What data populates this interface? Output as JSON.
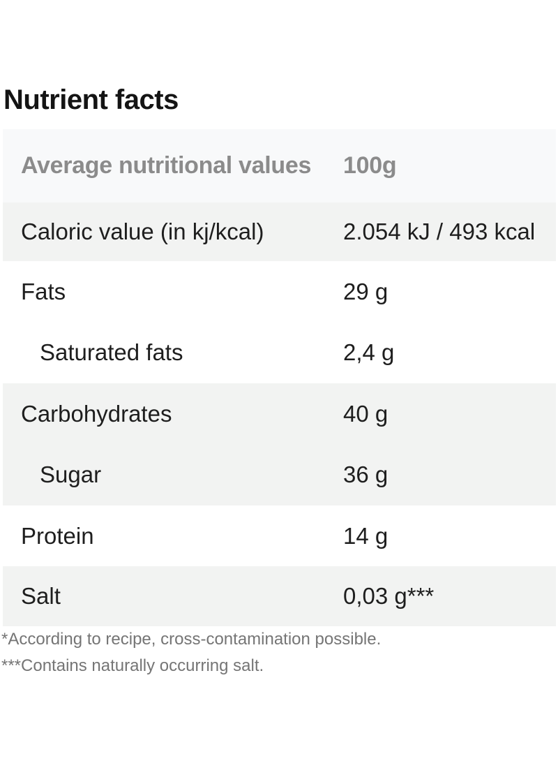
{
  "title": "Nutrient facts",
  "table": {
    "header": {
      "label": "Average nutritional values",
      "value": "100g"
    },
    "rows": [
      {
        "label": "Caloric value (in kj/kcal)",
        "value": "2.054 kJ / 493 kcal"
      },
      {
        "label": "Fats",
        "value": "29 g"
      },
      {
        "label": "Saturated fats",
        "value": "2,4 g"
      },
      {
        "label": "Carbohydrates",
        "value": "40 g"
      },
      {
        "label": "Sugar",
        "value": "36 g"
      },
      {
        "label": "Protein",
        "value": "14 g"
      },
      {
        "label": "Salt",
        "value": "0,03 g***"
      }
    ]
  },
  "footnotes": [
    "*According to recipe, cross-contamination possible.",
    "***Contains naturally occurring salt."
  ],
  "colors": {
    "header_row_bg": "#f8f9fa",
    "shaded_row_bg": "#f2f3f2",
    "body_text": "#1e1e1e",
    "header_text": "#8b8b8b",
    "footnote_text": "#757575"
  }
}
